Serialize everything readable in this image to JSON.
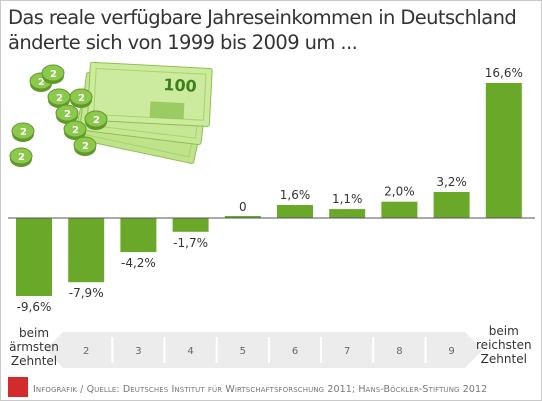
{
  "title": {
    "line1": "Das reale verfügbare Jahreseinkommen in Deutschland",
    "line2": "änderte sich von 1999 bis 2009 um ..."
  },
  "chart_data": {
    "type": "bar",
    "categories": [
      "1",
      "2",
      "3",
      "4",
      "5",
      "6",
      "7",
      "8",
      "9",
      "10"
    ],
    "values": [
      -9.6,
      -7.9,
      -4.2,
      -1.7,
      0,
      1.6,
      1.1,
      2.0,
      3.2,
      16.6
    ],
    "value_labels": [
      "-9,6%",
      "-7,9%",
      "-4,2%",
      "-1,7%",
      "0",
      "1,6%",
      "1,1%",
      "2,0%",
      "3,2%",
      "16,6%"
    ],
    "axis_numbers": [
      "2",
      "3",
      "4",
      "5",
      "6",
      "7",
      "8",
      "9"
    ],
    "left_label": [
      "beim",
      "ärmsten",
      "Zehntel"
    ],
    "right_label": [
      "beim",
      "reichsten",
      "Zehntel"
    ],
    "bar_color": "#6aa82a",
    "axis_band_color": "#ececec",
    "grid": false
  },
  "footer": "Infografik / Quelle: Deutsches Institut für Wirtschaftsforschung 2011; Hans-Böckler-Stiftung 2012",
  "illustration": {
    "coin_label": "2",
    "note_label": "100"
  },
  "colors": {
    "logo": "#d22b2b",
    "text": "#333333",
    "footer": "#777777"
  }
}
